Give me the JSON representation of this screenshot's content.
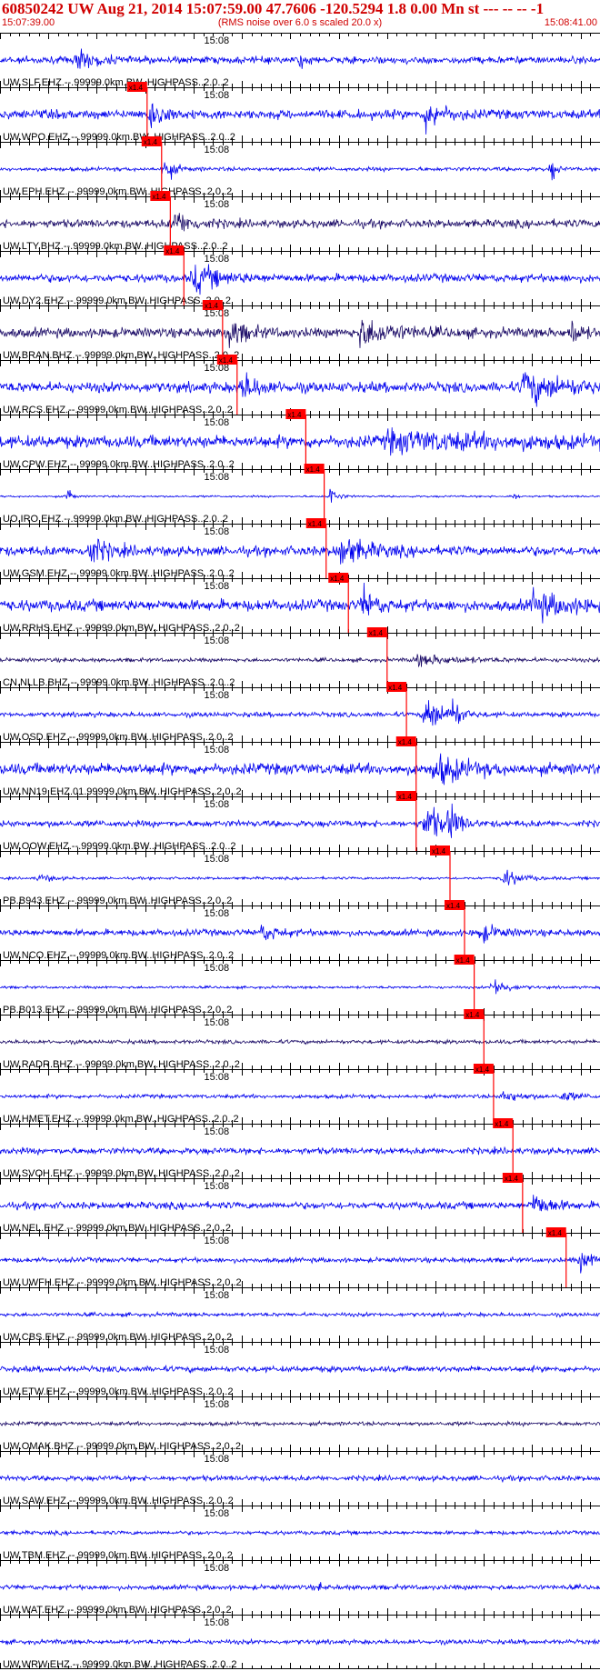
{
  "header": {
    "title": "60850242 UW Aug 21, 2014 15:07:59.00   47.7606 -120.5294  1.8 0.00 Mn st --- -- --   -1",
    "start_time": "15:07:39.00",
    "rms_note": "(RMS noise over 6.0 s scaled 20.0 x)",
    "end_time": "15:08:41.00"
  },
  "chart_data": {
    "type": "line",
    "time_window": [
      "15:07:39.00",
      "15:08:41.00"
    ],
    "minute_mark": "15:08",
    "pick_label": "x1.4",
    "filter": "BW  HIGHPASS  2.0  2",
    "colors": {
      "trace": "#0000ee",
      "trace_dark": "#1a0a66",
      "pick": "#ff0000",
      "axis": "#000000"
    },
    "traces": [
      {
        "label": "UW.SLF.EHZ.--.99999.0km.BW..HIGHPASS..2.0..2",
        "pick_s": null,
        "amp": 0.22,
        "events": [
          [
            8,
            0.7,
            2
          ],
          [
            31,
            0.5,
            0.6
          ]
        ],
        "dark": false,
        "show_pick": false
      },
      {
        "label": "UW.WPO.EHZ.--.99999.0km.BW..HIGHPASS..2.0..2",
        "pick_s": 15.2,
        "amp": 0.28,
        "events": [
          [
            15.5,
            1.0,
            1.5
          ],
          [
            44,
            1.0,
            2
          ]
        ],
        "dark": false,
        "show_pick": true
      },
      {
        "label": "UW.EPH.EHZ.--.99999.0km.BW..HIGHPASS..2.0..2",
        "pick_s": 16.7,
        "amp": 0.12,
        "events": [
          [
            17,
            0.9,
            1
          ],
          [
            57,
            0.9,
            0.5
          ]
        ],
        "dark": false,
        "show_pick": true
      },
      {
        "label": "UW.LTY.BHZ.--.99999.0km.BW..HIGHPASS..2.0..2",
        "pick_s": 17.6,
        "amp": 0.25,
        "events": [
          [
            18,
            0.8,
            2
          ]
        ],
        "dark": true,
        "show_pick": true
      },
      {
        "label": "UW.DY2.EHZ.--.99999.0km.BW..HIGHPASS..2.0..2",
        "pick_s": 19.0,
        "amp": 0.25,
        "events": [
          [
            20,
            0.9,
            3
          ]
        ],
        "dark": false,
        "show_pick": true
      },
      {
        "label": "UW.BRAN.BHZ.--.99999.0km.BW..HIGHPASS..2.0..2",
        "pick_s": 23.0,
        "amp": 0.3,
        "events": [
          [
            23.5,
            0.9,
            2
          ],
          [
            37,
            0.9,
            4
          ],
          [
            59,
            0.9,
            1
          ]
        ],
        "dark": true,
        "show_pick": true
      },
      {
        "label": "UW.RCS.EHZ.--.99999.0km.BW..HIGHPASS..2.0..2",
        "pick_s": 24.5,
        "amp": 0.32,
        "events": [
          [
            25,
            0.8,
            2
          ],
          [
            54,
            1.0,
            5
          ]
        ],
        "dark": false,
        "show_pick": true
      },
      {
        "label": "UW.CPW.EHZ.--.99999.0km.BW..HIGHPASS..2.0..2",
        "pick_s": 31.6,
        "amp": 0.38,
        "events": [
          [
            40,
            0.5,
            15
          ]
        ],
        "dark": false,
        "show_pick": true
      },
      {
        "label": "UO.IRO.EHZ.--.99999.0km.BW..HIGHPASS..2.0..2",
        "pick_s": 33.5,
        "amp": 0.06,
        "events": [
          [
            7,
            0.8,
            0.4
          ],
          [
            34,
            0.8,
            0.8
          ],
          [
            53,
            0.3,
            0.4
          ]
        ],
        "dark": false,
        "show_pick": true
      },
      {
        "label": "UW.GSM.EHZ.--.99999.0km.BW..HIGHPASS..2.0..2",
        "pick_s": 33.7,
        "amp": 0.3,
        "events": [
          [
            9,
            1.0,
            2
          ],
          [
            35,
            1.0,
            3
          ]
        ],
        "dark": false,
        "show_pick": true
      },
      {
        "label": "UW.RRHS.EHZ.--.99999.0km.BW..HIGHPASS..2.0..2",
        "pick_s": 36.0,
        "amp": 0.35,
        "events": [
          [
            37.5,
            1.0,
            1.5
          ],
          [
            55,
            0.8,
            4
          ]
        ],
        "dark": false,
        "show_pick": true
      },
      {
        "label": "CN.NLLB.BHZ.--.99999.0km.BW..HIGHPASS..2.0..2",
        "pick_s": 40.0,
        "amp": 0.12,
        "events": [
          [
            43,
            0.35,
            5
          ]
        ],
        "dark": true,
        "show_pick": true
      },
      {
        "label": "UW.OSD.EHZ.--.99999.0km.BW..HIGHPASS..2.0..2",
        "pick_s": 42.0,
        "amp": 0.15,
        "events": [
          [
            44,
            1.6,
            1.5
          ],
          [
            46.5,
            1.4,
            1
          ]
        ],
        "dark": false,
        "show_pick": true
      },
      {
        "label": "UW.NN19.EHZ.01.99999.0km.BW..HIGHPASS..2.0..2",
        "pick_s": 43.0,
        "amp": 0.35,
        "events": [
          [
            45,
            1.0,
            3
          ]
        ],
        "dark": false,
        "show_pick": true
      },
      {
        "label": "UW.OOW.EHZ.--.99999.0km.BW..HIGHPASS..2.0..2",
        "pick_s": 43.0,
        "amp": 0.2,
        "events": [
          [
            44,
            1.6,
            1.5
          ],
          [
            46.5,
            1.4,
            1
          ]
        ],
        "dark": false,
        "show_pick": true
      },
      {
        "label": "PB.B943.EHZ.--.99999.0km.BW..HIGHPASS..2.0..2",
        "pick_s": 46.5,
        "amp": 0.08,
        "events": [
          [
            4,
            0.3,
            1.5
          ],
          [
            52,
            0.6,
            2
          ]
        ],
        "dark": false,
        "show_pick": true
      },
      {
        "label": "UW.NCO.EHZ.--.99999.0km.BW..HIGHPASS..2.0..2",
        "pick_s": 48.0,
        "amp": 0.2,
        "events": [
          [
            27,
            0.5,
            2
          ],
          [
            49.5,
            0.6,
            2
          ]
        ],
        "dark": false,
        "show_pick": true
      },
      {
        "label": "PB.B013.EHZ.--.99999.0km.BW..HIGHPASS..2.0..2",
        "pick_s": 49.0,
        "amp": 0.08,
        "events": [
          [
            51,
            0.7,
            1.5
          ]
        ],
        "dark": false,
        "show_pick": true
      },
      {
        "label": "UW.RADR.BHZ.--.99999.0km.BW..HIGHPASS..2.0..2",
        "pick_s": 50.0,
        "amp": 0.12,
        "events": [],
        "dark": true,
        "show_pick": true
      },
      {
        "label": "UW.HMET.EHZ.--.99999.0km.BW..HIGHPASS..2.0..2",
        "pick_s": 51.0,
        "amp": 0.12,
        "events": [
          [
            52,
            0.4,
            2
          ],
          [
            58,
            0.3,
            2
          ]
        ],
        "dark": false,
        "show_pick": true
      },
      {
        "label": "UW.SVOH.EHZ.--.99999.0km.BW..HIGHPASS..2.0..2",
        "pick_s": 53.0,
        "amp": 0.2,
        "events": [],
        "dark": false,
        "show_pick": true
      },
      {
        "label": "UW.NEL.EHZ.--.99999.0km.BW..HIGHPASS..2.0..2",
        "pick_s": 54.0,
        "amp": 0.22,
        "events": [
          [
            55,
            0.8,
            2
          ]
        ],
        "dark": false,
        "show_pick": true
      },
      {
        "label": "UW.UWFH.EHZ.--.99999.0km.BW..HIGHPASS..2.0..2",
        "pick_s": 58.5,
        "amp": 0.15,
        "events": [
          [
            60,
            0.6,
            2
          ]
        ],
        "dark": false,
        "show_pick": true
      },
      {
        "label": "UW.CBS.EHZ.--.99999.0km.BW..HIGHPASS..2.0..2",
        "pick_s": null,
        "amp": 0.12,
        "events": [],
        "dark": false,
        "show_pick": false
      },
      {
        "label": "UW.ETW.EHZ.--.99999.0km.BW..HIGHPASS..2.0..2",
        "pick_s": null,
        "amp": 0.18,
        "events": [],
        "dark": false,
        "show_pick": false
      },
      {
        "label": "UW.OMAK.BHZ.--.99999.0km.BW..HIGHPASS..2.0..2",
        "pick_s": null,
        "amp": 0.12,
        "events": [],
        "dark": true,
        "show_pick": false
      },
      {
        "label": "UW.SAW.EHZ.--.99999.0km.BW..HIGHPASS..2.0..2",
        "pick_s": null,
        "amp": 0.16,
        "events": [],
        "dark": false,
        "show_pick": false
      },
      {
        "label": "UW.TBM.EHZ.--.99999.0km.BW..HIGHPASS..2.0..2",
        "pick_s": null,
        "amp": 0.12,
        "events": [],
        "dark": false,
        "show_pick": false
      },
      {
        "label": "UW.WAT.EHZ.--.99999.0km.BW..HIGHPASS..2.0..2",
        "pick_s": null,
        "amp": 0.15,
        "events": [
          [
            33,
            0.4,
            0.3
          ]
        ],
        "dark": false,
        "show_pick": false
      },
      {
        "label": "UW.WRW.EHZ.--.99999.0km.BW..HIGHPASS..2.0..2",
        "pick_s": null,
        "amp": 0.14,
        "events": [],
        "dark": false,
        "show_pick": false
      }
    ]
  }
}
